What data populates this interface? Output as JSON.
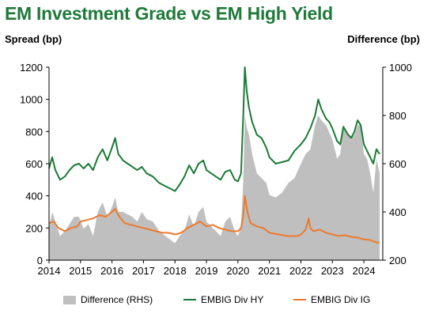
{
  "title": "EM Investment Grade vs EM High Yield",
  "left_axis_title": "Spread (bp)",
  "right_axis_title": "Difference (bp)",
  "colors": {
    "title": "#1f7a3a",
    "hy": "#1a7a35",
    "ig": "#ec7a2d",
    "diff": "#bfbfbf"
  },
  "legend": [
    {
      "label": "Difference (RHS)",
      "color": "#bfbfbf",
      "kind": "area"
    },
    {
      "label": "EMBIG Div HY",
      "color": "#1a7a35",
      "kind": "line"
    },
    {
      "label": "EMBIG Div IG",
      "color": "#ec7a2d",
      "kind": "line"
    }
  ],
  "chart_data": {
    "type": "line",
    "x_range": [
      2014.0,
      2024.6
    ],
    "x_ticks": [
      "2014",
      "2015",
      "2016",
      "2017",
      "2018",
      "2019",
      "2020",
      "2021",
      "2022",
      "2023",
      "2024"
    ],
    "left_axis": {
      "label": "Spread (bp)",
      "range": [
        0,
        1200
      ],
      "ticks": [
        "0",
        "200",
        "400",
        "600",
        "800",
        "1000",
        "1200"
      ]
    },
    "right_axis": {
      "label": "Difference (bp)",
      "range": [
        200,
        1000
      ],
      "ticks": [
        "200",
        "400",
        "600",
        "800",
        "1000"
      ]
    },
    "series": [
      {
        "name": "EMBIG Div HY",
        "axis": "left",
        "x": [
          2014.0,
          2014.1,
          2014.2,
          2014.35,
          2014.5,
          2014.65,
          2014.8,
          2014.95,
          2015.1,
          2015.25,
          2015.4,
          2015.55,
          2015.7,
          2015.85,
          2016.0,
          2016.1,
          2016.2,
          2016.35,
          2016.5,
          2016.65,
          2016.8,
          2016.95,
          2017.1,
          2017.3,
          2017.5,
          2017.7,
          2017.9,
          2018.0,
          2018.15,
          2018.3,
          2018.45,
          2018.6,
          2018.75,
          2018.9,
          2019.0,
          2019.15,
          2019.3,
          2019.45,
          2019.6,
          2019.75,
          2019.9,
          2020.0,
          2020.1,
          2020.17,
          2020.22,
          2020.28,
          2020.35,
          2020.45,
          2020.6,
          2020.75,
          2020.9,
          2021.0,
          2021.2,
          2021.4,
          2021.6,
          2021.8,
          2022.0,
          2022.15,
          2022.3,
          2022.45,
          2022.55,
          2022.65,
          2022.8,
          2022.9,
          2023.0,
          2023.15,
          2023.25,
          2023.35,
          2023.5,
          2023.6,
          2023.7,
          2023.8,
          2023.9,
          2024.0,
          2024.1,
          2024.2,
          2024.3,
          2024.4,
          2024.5
        ],
        "y": [
          570,
          640,
          560,
          500,
          520,
          560,
          590,
          600,
          570,
          600,
          560,
          640,
          690,
          620,
          700,
          760,
          660,
          620,
          600,
          580,
          560,
          580,
          540,
          520,
          480,
          460,
          440,
          430,
          470,
          520,
          590,
          540,
          600,
          620,
          560,
          540,
          520,
          500,
          550,
          560,
          500,
          490,
          540,
          900,
          1200,
          1050,
          950,
          860,
          780,
          760,
          700,
          640,
          600,
          610,
          620,
          680,
          720,
          760,
          820,
          900,
          1000,
          940,
          880,
          860,
          820,
          740,
          720,
          830,
          780,
          760,
          800,
          870,
          840,
          720,
          680,
          640,
          600,
          690,
          660
        ]
      },
      {
        "name": "EMBIG Div IG",
        "axis": "left",
        "x": [
          2014.0,
          2014.15,
          2014.3,
          2014.5,
          2014.7,
          2014.9,
          2015.0,
          2015.2,
          2015.4,
          2015.6,
          2015.8,
          2016.0,
          2016.1,
          2016.2,
          2016.4,
          2016.6,
          2016.8,
          2017.0,
          2017.2,
          2017.4,
          2017.6,
          2017.8,
          2018.0,
          2018.2,
          2018.4,
          2018.6,
          2018.8,
          2019.0,
          2019.2,
          2019.4,
          2019.6,
          2019.8,
          2020.0,
          2020.1,
          2020.17,
          2020.22,
          2020.3,
          2020.4,
          2020.6,
          2020.8,
          2021.0,
          2021.3,
          2021.6,
          2021.9,
          2022.0,
          2022.15,
          2022.25,
          2022.3,
          2022.4,
          2022.6,
          2022.8,
          2023.0,
          2023.2,
          2023.4,
          2023.6,
          2023.8,
          2024.0,
          2024.2,
          2024.4,
          2024.5
        ],
        "y": [
          230,
          240,
          200,
          180,
          200,
          210,
          240,
          250,
          260,
          280,
          270,
          300,
          320,
          280,
          230,
          220,
          210,
          200,
          190,
          180,
          170,
          170,
          160,
          170,
          200,
          220,
          240,
          210,
          220,
          200,
          190,
          180,
          180,
          200,
          280,
          400,
          300,
          230,
          210,
          200,
          170,
          160,
          150,
          150,
          160,
          190,
          260,
          200,
          180,
          190,
          170,
          160,
          150,
          155,
          145,
          140,
          130,
          125,
          110,
          110
        ]
      },
      {
        "name": "Difference (RHS)",
        "axis": "right",
        "x": [
          2014.0,
          2014.1,
          2014.2,
          2014.35,
          2014.5,
          2014.65,
          2014.8,
          2014.95,
          2015.1,
          2015.25,
          2015.4,
          2015.55,
          2015.7,
          2015.85,
          2016.0,
          2016.1,
          2016.2,
          2016.35,
          2016.5,
          2016.65,
          2016.8,
          2016.95,
          2017.1,
          2017.3,
          2017.5,
          2017.7,
          2017.9,
          2018.0,
          2018.15,
          2018.3,
          2018.45,
          2018.6,
          2018.75,
          2018.9,
          2019.0,
          2019.15,
          2019.3,
          2019.45,
          2019.6,
          2019.75,
          2019.9,
          2020.0,
          2020.1,
          2020.17,
          2020.22,
          2020.28,
          2020.35,
          2020.45,
          2020.6,
          2020.75,
          2020.9,
          2021.0,
          2021.2,
          2021.4,
          2021.6,
          2021.8,
          2022.0,
          2022.15,
          2022.3,
          2022.45,
          2022.55,
          2022.65,
          2022.8,
          2022.9,
          2023.0,
          2023.15,
          2023.25,
          2023.35,
          2023.5,
          2023.6,
          2023.7,
          2023.8,
          2023.9,
          2024.0,
          2024.1,
          2024.2,
          2024.3,
          2024.4,
          2024.5
        ],
        "y": [
          340,
          400,
          360,
          300,
          320,
          350,
          380,
          380,
          330,
          350,
          300,
          400,
          440,
          380,
          420,
          460,
          400,
          400,
          390,
          380,
          360,
          400,
          370,
          360,
          320,
          300,
          280,
          270,
          300,
          320,
          390,
          340,
          400,
          420,
          360,
          340,
          320,
          300,
          360,
          380,
          320,
          300,
          340,
          530,
          800,
          750,
          720,
          640,
          560,
          540,
          520,
          470,
          460,
          480,
          520,
          540,
          600,
          640,
          660,
          760,
          800,
          780,
          760,
          730,
          700,
          620,
          640,
          760,
          720,
          700,
          720,
          760,
          760,
          640,
          620,
          560,
          480,
          620,
          560
        ]
      }
    ]
  }
}
